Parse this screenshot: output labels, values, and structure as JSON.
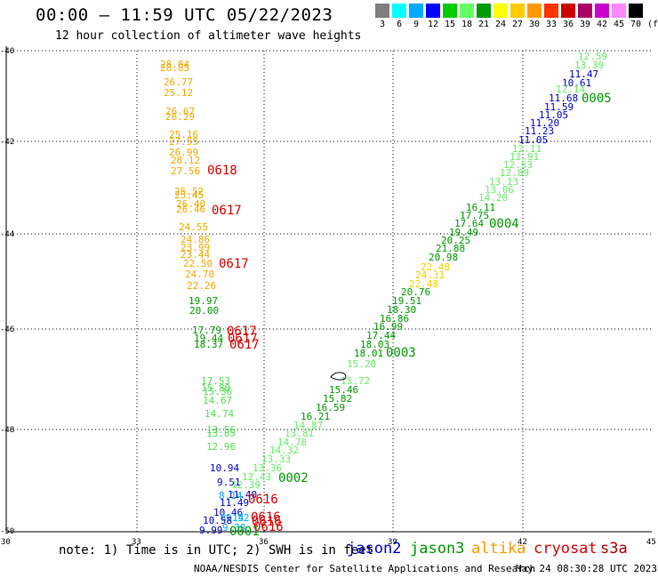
{
  "header": {
    "title": "00:00 – 11:59 UTC 05/22/2023",
    "subtitle": "12 hour collection of altimeter wave heights"
  },
  "color_scale": {
    "colors": [
      "#7f7f7f",
      "#00ffff",
      "#00aaff",
      "#0000ff",
      "#00cc00",
      "#66ff66",
      "#009900",
      "#ffff00",
      "#ffcc00",
      "#ff9900",
      "#ff3300",
      "#cc0000",
      "#aa0066",
      "#cc00cc",
      "#ff88ff",
      "#000000"
    ],
    "labels": [
      "3",
      "6",
      "9",
      "12",
      "15",
      "18",
      "21",
      "24",
      "27",
      "30",
      "33",
      "36",
      "39",
      "42",
      "45",
      "70"
    ],
    "unit": "(ft)"
  },
  "axes": {
    "lat_labels": [
      "-40",
      "-42",
      "-44",
      "-46",
      "-48",
      "-50"
    ],
    "lon_labels": [
      "30",
      "33",
      "36",
      "39",
      "42",
      "45"
    ]
  },
  "tracks": {
    "altika_north": {
      "color": "#f0a800",
      "items": [
        "28.84",
        "28.85",
        "26.77",
        "25.12",
        "26.67",
        "26.29",
        "25.16",
        "27.55",
        "26.99",
        "28.12",
        "27.56",
        "25.52",
        "25.45",
        "26.40",
        "26.46",
        "24.55",
        "24.86",
        "23.99",
        "23.44",
        "22.50",
        "24.70",
        "22.26"
      ]
    },
    "jason3_north_labels": [
      "19.97",
      "20.00",
      "17.79",
      "19.44",
      "18.37"
    ],
    "cryosat_north_labels": [
      "0618",
      "0617",
      "0617",
      "0617",
      "0617",
      "0617"
    ],
    "s3_south_light": [
      "17.53",
      "15.80",
      "15.36",
      "14.67",
      "14.74",
      "13.56",
      "13.85",
      "12.96"
    ],
    "mixed_south": [
      {
        "v": "10.94",
        "c": "#0000cc"
      },
      {
        "v": "9.51",
        "c": "#0000cc"
      },
      {
        "v": "8.14",
        "c": "#00aaff"
      },
      {
        "v": "11.40",
        "c": "#0000cc"
      },
      {
        "v": "11.49",
        "c": "#0000cc"
      },
      {
        "v": "10.46",
        "c": "#0000cc"
      },
      {
        "v": "8.14",
        "c": "#00aaff"
      },
      {
        "v": "9.52",
        "c": "#00aaff"
      },
      {
        "v": "10.58",
        "c": "#0000cc"
      },
      {
        "v": "9.99",
        "c": "#0000cc"
      },
      {
        "v": "9.30",
        "c": "#00aaff"
      }
    ],
    "cryosat_south_labels": [
      "0616",
      "0616",
      "0616",
      "0616"
    ],
    "jason3_south_label": "0001",
    "diagonal": [
      {
        "v": "12.59",
        "c": "#66ee66"
      },
      {
        "v": "13.39",
        "c": "#66ee66"
      },
      {
        "v": "11.47",
        "c": "#0000cc"
      },
      {
        "v": "10.61",
        "c": "#0000cc"
      },
      {
        "v": "12.14",
        "c": "#66ee66"
      },
      {
        "v": "11.68",
        "c": "#0000cc"
      },
      {
        "v": "11.59",
        "c": "#0000cc"
      },
      {
        "v": "11.05",
        "c": "#0000cc"
      },
      {
        "v": "11.20",
        "c": "#0000cc"
      },
      {
        "v": "11.23",
        "c": "#0000cc"
      },
      {
        "v": "11.05",
        "c": "#0000cc"
      },
      {
        "v": "12.11",
        "c": "#66ee66"
      },
      {
        "v": "12.91",
        "c": "#66ee66"
      },
      {
        "v": "12.53",
        "c": "#66ee66"
      },
      {
        "v": "12.89",
        "c": "#66ee66"
      },
      {
        "v": "13.13",
        "c": "#66ee66"
      },
      {
        "v": "13.06",
        "c": "#66ee66"
      },
      {
        "v": "14.20",
        "c": "#66ee66"
      },
      {
        "v": "16.11",
        "c": "#009900"
      },
      {
        "v": "17.75",
        "c": "#009900"
      },
      {
        "v": "17.64",
        "c": "#009900"
      },
      {
        "v": "19.49",
        "c": "#009900"
      },
      {
        "v": "20.25",
        "c": "#009900"
      },
      {
        "v": "21.88",
        "c": "#009900"
      },
      {
        "v": "20.98",
        "c": "#009900"
      },
      {
        "v": "22.48",
        "c": "#f0d000"
      },
      {
        "v": "24.31",
        "c": "#f0d000"
      },
      {
        "v": "22.48",
        "c": "#f0d000"
      },
      {
        "v": "20.76",
        "c": "#009900"
      },
      {
        "v": "19.51",
        "c": "#009900"
      },
      {
        "v": "18.30",
        "c": "#009900"
      },
      {
        "v": "16.86",
        "c": "#009900"
      },
      {
        "v": "16.99",
        "c": "#009900"
      },
      {
        "v": "17.44",
        "c": "#009900"
      },
      {
        "v": "18.03",
        "c": "#009900"
      },
      {
        "v": "18.01",
        "c": "#009900"
      },
      {
        "v": "15.20",
        "c": "#66ee66"
      },
      {
        "v": "15.72",
        "c": "#66ee66"
      },
      {
        "v": "15.46",
        "c": "#009900"
      },
      {
        "v": "15.82",
        "c": "#009900"
      },
      {
        "v": "16.59",
        "c": "#009900"
      },
      {
        "v": "16.21",
        "c": "#009900"
      },
      {
        "v": "14.87",
        "c": "#66ee66"
      },
      {
        "v": "13.81",
        "c": "#66ee66"
      },
      {
        "v": "14.78",
        "c": "#66ee66"
      },
      {
        "v": "14.32",
        "c": "#66ee66"
      },
      {
        "v": "13.33",
        "c": "#66ee66"
      },
      {
        "v": "13.36",
        "c": "#66ee66"
      },
      {
        "v": "12.43",
        "c": "#66ee66"
      },
      {
        "v": "12.39",
        "c": "#66ee66"
      }
    ],
    "diagonal_times": [
      "0005",
      "0004",
      "0003",
      "0002"
    ]
  },
  "footer": {
    "note": "note: 1) Time is in UTC; 2) SWH is in feet",
    "legend": [
      {
        "name": "jason2",
        "color": "#0000cc"
      },
      {
        "name": "jason3",
        "color": "#009900"
      },
      {
        "name": "altika",
        "color": "#ff9900"
      },
      {
        "name": "cryosat",
        "color": "#dd0000"
      },
      {
        "name": "s3a",
        "color": "#aa0000"
      }
    ],
    "credit": "NOAA/NESDIS Center for Satellite Applications and Research",
    "timestamp": "May 24 08:30:28 UTC 2023"
  }
}
